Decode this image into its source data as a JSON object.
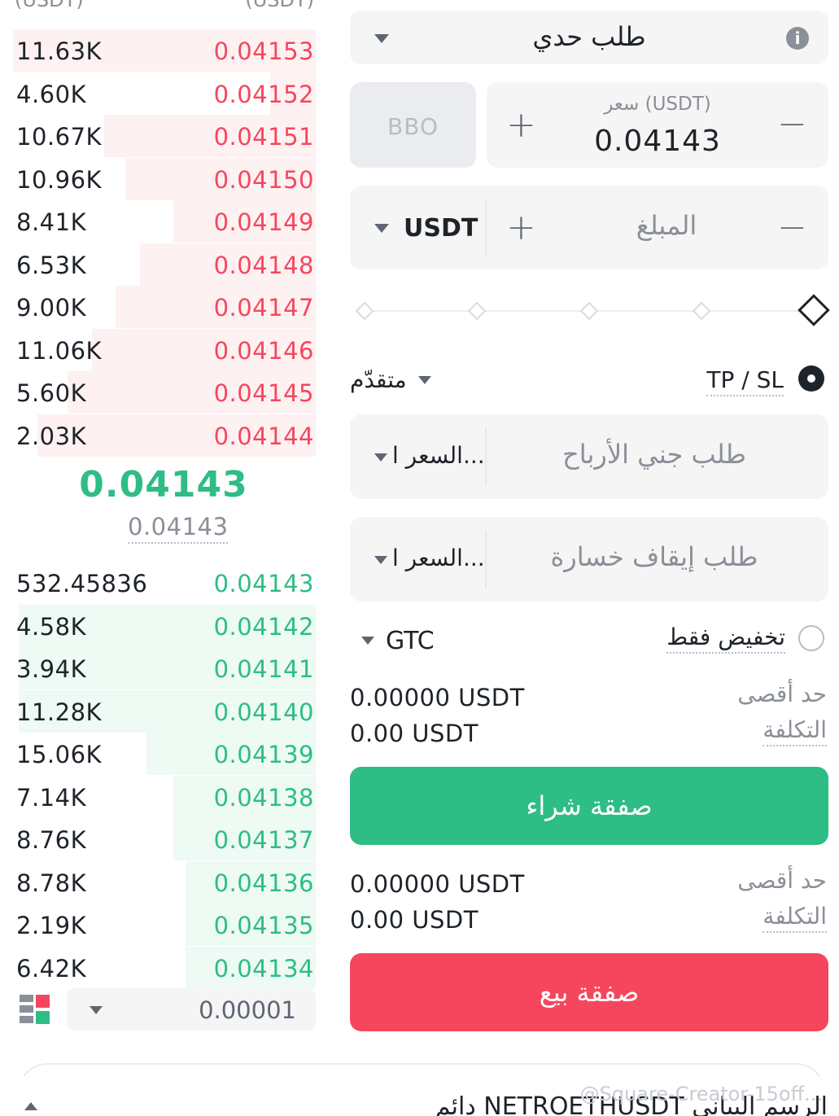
{
  "orderbook": {
    "header_left": "(USDT)",
    "header_right": "(USDT)",
    "asks": [
      {
        "qty": "11.63K",
        "price": "0.04153",
        "depth": 1.0
      },
      {
        "qty": "4.60K",
        "price": "0.04152",
        "depth": 0.15
      },
      {
        "qty": "10.67K",
        "price": "0.04151",
        "depth": 0.7
      },
      {
        "qty": "10.96K",
        "price": "0.04150",
        "depth": 0.63
      },
      {
        "qty": "8.41K",
        "price": "0.04149",
        "depth": 0.47
      },
      {
        "qty": "6.53K",
        "price": "0.04148",
        "depth": 0.58
      },
      {
        "qty": "9.00K",
        "price": "0.04147",
        "depth": 0.66
      },
      {
        "qty": "11.06K",
        "price": "0.04146",
        "depth": 0.74
      },
      {
        "qty": "5.60K",
        "price": "0.04145",
        "depth": 0.82
      },
      {
        "qty": "2.03K",
        "price": "0.04144",
        "depth": 0.92
      }
    ],
    "mid_price": "0.04143",
    "mark_price": "0.04143",
    "bids": [
      {
        "qty": "532.45836",
        "price": "0.04143",
        "depth": 0.0
      },
      {
        "qty": "4.58K",
        "price": "0.04142",
        "depth": 0.98
      },
      {
        "qty": "3.94K",
        "price": "0.04141",
        "depth": 0.98
      },
      {
        "qty": "11.28K",
        "price": "0.04140",
        "depth": 0.98
      },
      {
        "qty": "15.06K",
        "price": "0.04139",
        "depth": 0.56
      },
      {
        "qty": "7.14K",
        "price": "0.04138",
        "depth": 0.47
      },
      {
        "qty": "8.76K",
        "price": "0.04137",
        "depth": 0.47
      },
      {
        "qty": "8.78K",
        "price": "0.04136",
        "depth": 0.43
      },
      {
        "qty": "2.19K",
        "price": "0.04135",
        "depth": 0.43
      },
      {
        "qty": "6.42K",
        "price": "0.04134",
        "depth": 0.43
      }
    ],
    "precision": "0.00001"
  },
  "form": {
    "order_type": "طلب حدي",
    "bbo_label": "BBO",
    "price_label": "سعر (USDT)",
    "price_value": "0.04143",
    "amount_placeholder": "المبلغ",
    "amount_unit": "USDT",
    "slider_percent": 100,
    "advanced_label": "متقدّم",
    "tpsl_label": "TP / SL",
    "tp_placeholder": "طلب جني الأرباح",
    "tp_trigger": "السعر ا...",
    "sl_placeholder": "طلب إيقاف خسارة",
    "sl_trigger": "السعر ا...",
    "tif": "GTC",
    "reduce_only": "تخفيض فقط"
  },
  "buy": {
    "max_label": "حد أقصى",
    "max_value": "0.00000 USDT",
    "cost_label": "التكلفة",
    "cost_value": "0.00 USDT",
    "button": "صفقة شراء"
  },
  "sell": {
    "max_label": "حد أقصى",
    "max_value": "0.00000 USDT",
    "cost_label": "التكلفة",
    "cost_value": "0.00 USDT",
    "button": "صفقة بيع"
  },
  "bottom": {
    "title": "دائم NETROETHUSDT الرسم البياني",
    "watermark": "@Square-Creator-15off..."
  },
  "colors": {
    "buy": "#2ebd85",
    "sell": "#f6465d",
    "ask_depth": "#fef1f2",
    "bid_depth": "#eefaf4"
  }
}
